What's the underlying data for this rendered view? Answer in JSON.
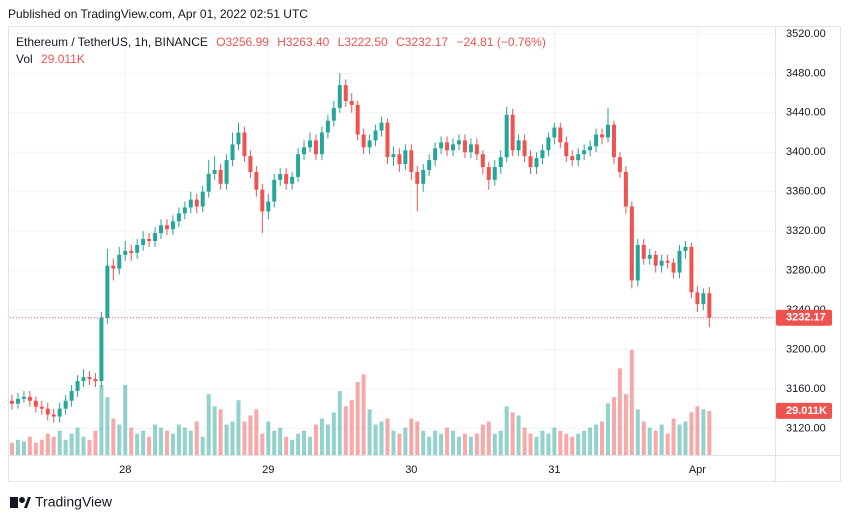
{
  "header": {
    "published": "Published on TradingView.com, Apr 01, 2022 02:51 UTC"
  },
  "footer": {
    "brand": "TradingView"
  },
  "chart_data": {
    "type": "candlestick",
    "title": "Ethereum / TetherUS, 1h, BINANCE",
    "legend_ohlc": [
      "O3256.99",
      "H3263.40",
      "L3222.50",
      "C3232.17"
    ],
    "change": "−24.81 (−0.76%)",
    "volume_label": "Vol",
    "volume_last_label": "29.011K",
    "up_color": "#26a69a",
    "down_color": "#ef5350",
    "grid": true,
    "categories": [
      null,
      null,
      null,
      null,
      null,
      null,
      null,
      null,
      null,
      null,
      null,
      null,
      null,
      null,
      null,
      null,
      null,
      null,
      null,
      "28",
      null,
      null,
      null,
      null,
      null,
      null,
      null,
      null,
      null,
      null,
      null,
      null,
      null,
      null,
      null,
      null,
      null,
      null,
      null,
      null,
      null,
      null,
      null,
      "29",
      null,
      null,
      null,
      null,
      null,
      null,
      null,
      null,
      null,
      null,
      null,
      null,
      null,
      null,
      null,
      null,
      null,
      null,
      null,
      null,
      null,
      null,
      null,
      "30",
      null,
      null,
      null,
      null,
      null,
      null,
      null,
      null,
      null,
      null,
      null,
      null,
      null,
      null,
      null,
      null,
      null,
      null,
      null,
      null,
      null,
      null,
      null,
      "31",
      null,
      null,
      null,
      null,
      null,
      null,
      null,
      null,
      null,
      null,
      null,
      null,
      null,
      null,
      null,
      null,
      null,
      null,
      null,
      null,
      null,
      null,
      null,
      "Apr",
      null,
      null
    ],
    "open": [
      3148,
      3145,
      3150,
      3152,
      3148,
      3142,
      3140,
      3134,
      3132,
      3140,
      3148,
      3158,
      3168,
      3172,
      3170,
      3168,
      3232,
      3285,
      3282,
      3296,
      3300,
      3298,
      3306,
      3312,
      3310,
      3318,
      3326,
      3322,
      3330,
      3338,
      3344,
      3352,
      3345,
      3360,
      3378,
      3382,
      3368,
      3392,
      3408,
      3420,
      3396,
      3380,
      3362,
      3340,
      3350,
      3372,
      3378,
      3368,
      3375,
      3398,
      3405,
      3412,
      3398,
      3420,
      3432,
      3445,
      3468,
      3452,
      3448,
      3418,
      3405,
      3412,
      3422,
      3430,
      3395,
      3398,
      3388,
      3402,
      3380,
      3368,
      3382,
      3392,
      3404,
      3410,
      3402,
      3408,
      3412,
      3400,
      3408,
      3398,
      3385,
      3372,
      3385,
      3395,
      3438,
      3402,
      3412,
      3396,
      3385,
      3394,
      3402,
      3415,
      3425,
      3410,
      3396,
      3392,
      3398,
      3402,
      3406,
      3418,
      3415,
      3428,
      3395,
      3380,
      3345,
      3270,
      3306,
      3292,
      3296,
      3285,
      3290,
      3288,
      3278,
      3300,
      3304,
      3258,
      3246,
      3256.99
    ],
    "high": [
      3154,
      3156,
      3158,
      3158,
      3152,
      3148,
      3146,
      3140,
      3146,
      3154,
      3164,
      3174,
      3180,
      3178,
      3176,
      3238,
      3302,
      3292,
      3304,
      3310,
      3306,
      3312,
      3320,
      3318,
      3324,
      3332,
      3332,
      3336,
      3344,
      3350,
      3360,
      3358,
      3366,
      3392,
      3396,
      3388,
      3398,
      3420,
      3430,
      3426,
      3402,
      3386,
      3368,
      3358,
      3378,
      3384,
      3384,
      3380,
      3404,
      3412,
      3420,
      3418,
      3426,
      3438,
      3452,
      3480,
      3474,
      3460,
      3452,
      3424,
      3418,
      3428,
      3436,
      3434,
      3406,
      3404,
      3408,
      3408,
      3386,
      3388,
      3398,
      3410,
      3416,
      3416,
      3414,
      3418,
      3418,
      3414,
      3414,
      3402,
      3390,
      3392,
      3402,
      3446,
      3444,
      3418,
      3418,
      3402,
      3400,
      3408,
      3420,
      3430,
      3430,
      3416,
      3402,
      3404,
      3408,
      3412,
      3424,
      3424,
      3445,
      3432,
      3400,
      3386,
      3350,
      3312,
      3312,
      3302,
      3300,
      3296,
      3296,
      3292,
      3306,
      3310,
      3308,
      3264,
      3262,
      3263.4
    ],
    "low": [
      3139,
      3140,
      3146,
      3142,
      3136,
      3134,
      3128,
      3126,
      3126,
      3134,
      3142,
      3152,
      3162,
      3164,
      3162,
      3162,
      3226,
      3270,
      3276,
      3290,
      3290,
      3292,
      3300,
      3304,
      3304,
      3312,
      3316,
      3316,
      3324,
      3332,
      3338,
      3338,
      3339,
      3354,
      3372,
      3362,
      3362,
      3386,
      3402,
      3390,
      3374,
      3355,
      3318,
      3332,
      3344,
      3366,
      3362,
      3362,
      3370,
      3392,
      3400,
      3392,
      3392,
      3414,
      3426,
      3440,
      3446,
      3440,
      3412,
      3398,
      3398,
      3406,
      3416,
      3388,
      3386,
      3380,
      3382,
      3372,
      3340,
      3360,
      3376,
      3386,
      3398,
      3396,
      3396,
      3402,
      3394,
      3394,
      3392,
      3378,
      3362,
      3366,
      3378,
      3390,
      3396,
      3396,
      3390,
      3378,
      3378,
      3388,
      3396,
      3408,
      3404,
      3390,
      3386,
      3386,
      3392,
      3396,
      3400,
      3408,
      3410,
      3388,
      3374,
      3338,
      3262,
      3264,
      3286,
      3286,
      3278,
      3278,
      3282,
      3272,
      3272,
      3292,
      3252,
      3238,
      3240,
      3222.5
    ],
    "close": [
      3145,
      3150,
      3152,
      3148,
      3142,
      3140,
      3134,
      3132,
      3140,
      3148,
      3158,
      3168,
      3172,
      3170,
      3168,
      3232,
      3285,
      3282,
      3296,
      3300,
      3298,
      3306,
      3312,
      3310,
      3318,
      3326,
      3322,
      3330,
      3338,
      3344,
      3352,
      3345,
      3360,
      3378,
      3382,
      3368,
      3392,
      3408,
      3420,
      3396,
      3380,
      3362,
      3340,
      3350,
      3372,
      3378,
      3368,
      3375,
      3398,
      3405,
      3412,
      3398,
      3420,
      3432,
      3445,
      3468,
      3452,
      3448,
      3418,
      3405,
      3412,
      3422,
      3430,
      3395,
      3398,
      3388,
      3402,
      3380,
      3368,
      3382,
      3392,
      3404,
      3410,
      3402,
      3408,
      3412,
      3400,
      3408,
      3398,
      3385,
      3372,
      3385,
      3395,
      3438,
      3402,
      3412,
      3396,
      3385,
      3394,
      3402,
      3415,
      3425,
      3410,
      3396,
      3392,
      3398,
      3402,
      3406,
      3418,
      3415,
      3428,
      3395,
      3380,
      3345,
      3270,
      3306,
      3292,
      3296,
      3285,
      3290,
      3288,
      3278,
      3300,
      3304,
      3258,
      3246,
      3256.99,
      3232.17
    ],
    "volume": [
      8,
      10,
      9,
      12,
      8,
      10,
      14,
      12,
      16,
      10,
      14,
      18,
      12,
      10,
      16,
      46,
      38,
      24,
      20,
      46,
      18,
      14,
      16,
      12,
      20,
      18,
      16,
      14,
      20,
      18,
      16,
      22,
      12,
      40,
      32,
      30,
      20,
      22,
      36,
      22,
      26,
      30,
      14,
      22,
      16,
      18,
      12,
      10,
      14,
      16,
      12,
      20,
      24,
      20,
      28,
      42,
      32,
      36,
      48,
      53,
      30,
      20,
      22,
      24,
      16,
      14,
      18,
      24,
      22,
      16,
      12,
      16,
      14,
      18,
      16,
      12,
      14,
      12,
      14,
      20,
      22,
      14,
      16,
      32,
      28,
      26,
      18,
      14,
      12,
      16,
      14,
      18,
      16,
      14,
      12,
      14,
      16,
      18,
      20,
      22,
      34,
      38,
      57,
      40,
      69,
      30,
      22,
      18,
      16,
      20,
      14,
      24,
      20,
      22,
      28,
      32,
      30,
      29.011
    ],
    "ylim": [
      3093,
      3527
    ],
    "yticks": [
      {
        "value": 3120,
        "label": "3120.00"
      },
      {
        "value": 3160,
        "label": "3160.00"
      },
      {
        "value": 3200,
        "label": "3200.00"
      },
      {
        "value": 3240,
        "label": "3240.00"
      },
      {
        "value": 3280,
        "label": "3280.00"
      },
      {
        "value": 3320,
        "label": "3320.00"
      },
      {
        "value": 3360,
        "label": "3360.00"
      },
      {
        "value": 3400,
        "label": "3400.00"
      },
      {
        "value": 3440,
        "label": "3440.00"
      },
      {
        "value": 3480,
        "label": "3480.00"
      },
      {
        "value": 3520,
        "label": "3520.00"
      }
    ]
  }
}
